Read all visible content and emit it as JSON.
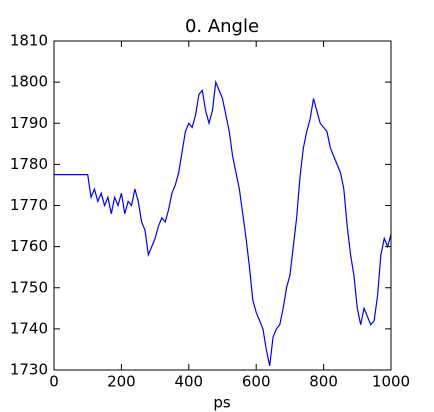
{
  "chart_data": {
    "type": "line",
    "title": "0. Angle",
    "xlabel": "ps",
    "x": [
      0,
      100,
      110,
      120,
      130,
      140,
      150,
      160,
      170,
      180,
      190,
      200,
      210,
      220,
      230,
      240,
      250,
      260,
      270,
      280,
      290,
      300,
      310,
      320,
      330,
      340,
      350,
      360,
      370,
      380,
      390,
      400,
      410,
      420,
      430,
      440,
      450,
      460,
      470,
      480,
      490,
      500,
      510,
      520,
      530,
      540,
      550,
      560,
      570,
      580,
      590,
      600,
      610,
      620,
      630,
      640,
      650,
      660,
      670,
      680,
      690,
      700,
      710,
      720,
      730,
      740,
      750,
      760,
      770,
      780,
      790,
      800,
      810,
      820,
      830,
      840,
      850,
      860,
      870,
      880,
      890,
      900,
      910,
      920,
      930,
      940,
      950,
      960,
      970,
      980,
      990,
      1000
    ],
    "series": [
      {
        "name": "Angle",
        "color": "#0000ff",
        "values": [
          1777.5,
          1777.5,
          1772,
          1774,
          1771,
          1773,
          1770,
          1772,
          1768,
          1772,
          1770,
          1773,
          1768,
          1771,
          1770,
          1774,
          1771,
          1766,
          1764,
          1758,
          1760,
          1762,
          1765,
          1767,
          1766,
          1769,
          1773,
          1775,
          1778,
          1783,
          1788,
          1790,
          1789,
          1792,
          1797,
          1798,
          1793,
          1790,
          1793,
          1800,
          1798,
          1796,
          1792,
          1788,
          1782,
          1778,
          1774,
          1768,
          1762,
          1755,
          1747,
          1744,
          1742,
          1740,
          1735,
          1731,
          1738,
          1740,
          1741,
          1745,
          1750,
          1753,
          1760,
          1767,
          1777,
          1784,
          1788,
          1791,
          1796,
          1793,
          1790,
          1789,
          1788,
          1784,
          1782,
          1780,
          1778,
          1774,
          1765,
          1758,
          1753,
          1745,
          1741,
          1745,
          1743,
          1741,
          1742,
          1748,
          1758,
          1762,
          1760,
          1763
        ]
      }
    ],
    "xlim": [
      0,
      1000
    ],
    "xticks": [
      0,
      200,
      400,
      600,
      800,
      1000
    ],
    "ylim": [
      1730,
      1810
    ],
    "yticks": [
      1730,
      1740,
      1750,
      1760,
      1770,
      1780,
      1790,
      1800,
      1810
    ]
  }
}
